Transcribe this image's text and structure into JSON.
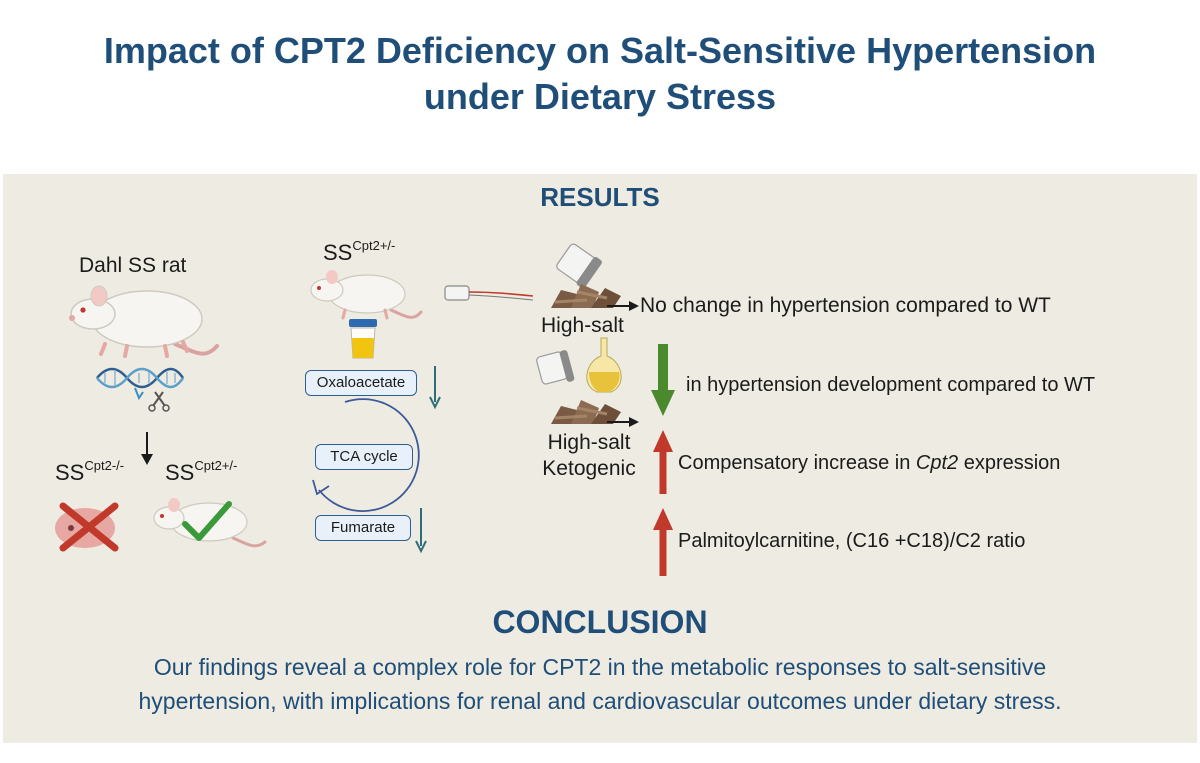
{
  "title_line1": "Impact of CPT2 Deficiency on Salt-Sensitive Hypertension",
  "title_line2": "under Dietary Stress",
  "results_heading": "RESULTS",
  "left": {
    "rat_label": "Dahl SS rat",
    "ko": {
      "base": "SS",
      "sup": "Cpt2-/-"
    },
    "het": {
      "base": "SS",
      "sup": "Cpt2+/-"
    }
  },
  "middle": {
    "genotype": {
      "base": "SS",
      "sup": "Cpt2+/-"
    },
    "oxaloacetate": "Oxaloacetate",
    "tca": "TCA cycle",
    "fumarate": "Fumarate"
  },
  "right": {
    "diet1": "High-salt",
    "diet2_line1": "High-salt",
    "diet2_line2": "Ketogenic",
    "finding1": "No change in hypertension compared to WT",
    "finding2": "in hypertension development compared to WT",
    "finding3_pre": "Compensatory increase in ",
    "finding3_gene": "Cpt2",
    "finding3_post": " expression",
    "finding4": "Palmitoylcarnitine, (C16 +C18)/C2 ratio"
  },
  "conclusion_heading": "CONCLUSION",
  "conclusion_line1": "Our findings reveal a complex role for CPT2 in the metabolic responses to salt-sensitive",
  "conclusion_line2": "hypertension, with implications for renal and cardiovascular outcomes under dietary stress.",
  "colors": {
    "title": "#1f4e79",
    "panel": "#eeebe2",
    "down_arrow": "#4a8a2c",
    "up_arrow": "#c0392b",
    "check": "#3a9a3a",
    "cross": "#c0392b"
  }
}
